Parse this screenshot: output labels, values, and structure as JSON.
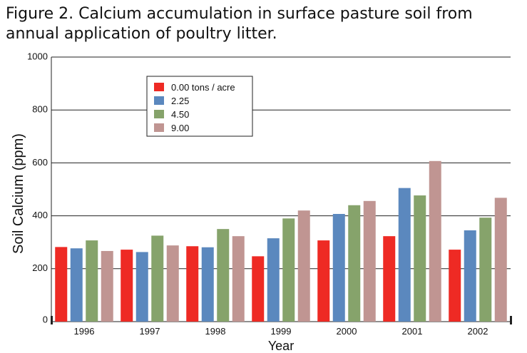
{
  "chart_data": {
    "type": "bar",
    "title": "Figure 2. Calcium accumulation in surface pasture soil from annual application of poultry litter.",
    "xlabel": "Year",
    "ylabel": "Soil Calcium (ppm)",
    "ylim": [
      0,
      1000
    ],
    "yticks": [
      "0",
      "200",
      "400",
      "600",
      "800",
      "1000"
    ],
    "grid": true,
    "legend_position": "top-left",
    "categories": [
      "1996",
      "1997",
      "1998",
      "1999",
      "2000",
      "2001",
      "2002"
    ],
    "series": [
      {
        "name": "0.00 tons / acre",
        "color": "#ee2a24",
        "values": [
          282,
          272,
          285,
          247,
          307,
          323,
          272
        ]
      },
      {
        "name": "2.25",
        "color": "#5b88be",
        "values": [
          277,
          263,
          281,
          315,
          407,
          505,
          345
        ]
      },
      {
        "name": "4.50",
        "color": "#86a36b",
        "values": [
          307,
          325,
          350,
          390,
          440,
          477,
          393
        ]
      },
      {
        "name": "9.00",
        "color": "#c09592",
        "values": [
          267,
          288,
          323,
          420,
          456,
          607,
          468
        ]
      }
    ]
  }
}
